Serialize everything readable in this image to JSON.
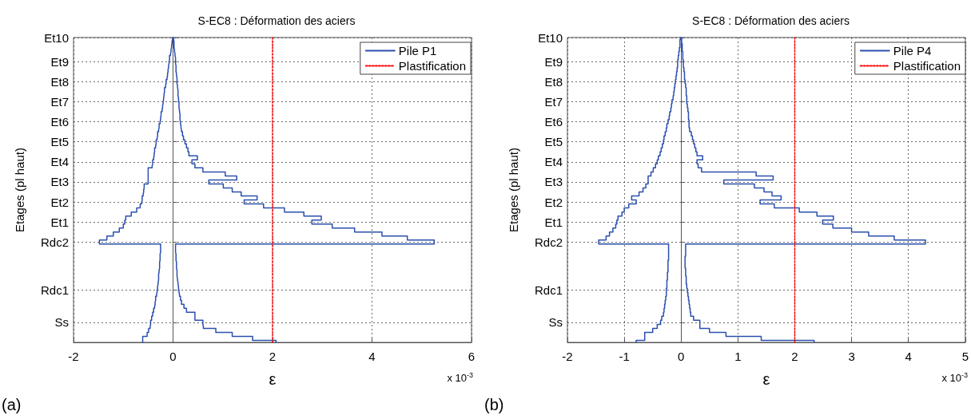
{
  "chart_data": [
    {
      "type": "step",
      "orientation": "horizontal",
      "title": "S-EC8 : Déformation des aciers",
      "xlabel": "ε",
      "ylabel": "Etages (pl haut)",
      "annotations": [
        "x 10$^{-3}$",
        "(a)"
      ],
      "xlim": [
        -2,
        6
      ],
      "xticks": [
        -2,
        0,
        2,
        4,
        6
      ],
      "categories": [
        "Et10",
        null,
        null,
        null,
        null,
        null,
        "Et9",
        null,
        null,
        null,
        null,
        "Et8",
        null,
        null,
        null,
        null,
        "Et7",
        null,
        null,
        null,
        null,
        "Et6",
        null,
        null,
        null,
        null,
        "Et5",
        null,
        null,
        null,
        null,
        "Et4",
        null,
        null,
        null,
        null,
        "Et3",
        null,
        null,
        null,
        null,
        "Et2",
        null,
        null,
        null,
        null,
        "Et1",
        null,
        null,
        null,
        null,
        "Rdc2",
        null,
        null,
        null,
        null,
        null,
        null,
        null,
        null,
        null,
        null,
        null,
        "Rdc1",
        null,
        null,
        null,
        null,
        null,
        null,
        null,
        "Ss",
        null,
        null,
        null,
        null,
        null
      ],
      "grid": true,
      "legend": "top right",
      "marker": "none",
      "series": [
        {
          "name": "Plastification",
          "color": "#ff0000",
          "line_style": "dotted",
          "values": [
            2,
            2,
            2,
            2,
            2,
            2,
            2,
            2,
            2,
            2,
            2,
            2,
            2,
            2,
            2,
            2,
            2,
            2,
            2,
            2,
            2,
            2,
            2,
            2,
            2,
            2,
            2,
            2,
            2,
            2,
            2,
            2,
            2,
            2,
            2,
            2,
            2,
            2,
            2,
            2,
            2,
            2,
            2,
            2,
            2,
            2,
            2,
            2,
            2,
            2,
            2,
            2,
            2,
            2,
            2,
            2,
            2,
            2,
            2,
            2,
            2,
            2,
            2,
            2,
            2,
            2,
            2,
            2,
            2,
            2,
            2,
            2,
            2,
            2,
            2,
            2,
            2
          ]
        },
        {
          "name": "Pile P1",
          "color": "#2b4fae",
          "values": [
            -0.01,
            -0.02,
            -0.03,
            -0.04,
            -0.05,
            -0.07,
            -0.08,
            -0.09,
            -0.1,
            -0.11,
            -0.12,
            -0.14,
            -0.15,
            -0.17,
            -0.18,
            -0.19,
            -0.2,
            -0.21,
            -0.22,
            -0.24,
            -0.25,
            -0.26,
            -0.28,
            -0.29,
            -0.31,
            -0.32,
            -0.34,
            -0.35,
            -0.37,
            -0.38,
            -0.39,
            -0.41,
            -0.42,
            -0.5,
            -0.5,
            -0.5,
            -0.5,
            -0.58,
            -0.59,
            -0.6,
            -0.62,
            -0.63,
            -0.66,
            -0.73,
            -0.84,
            -0.95,
            -0.97,
            -1.0,
            -1.08,
            -1.2,
            -1.33,
            -1.48,
            -0.25,
            -0.25,
            -0.26,
            -0.26,
            -0.27,
            -0.27,
            -0.28,
            -0.29,
            -0.29,
            -0.3,
            -0.31,
            -0.32,
            -0.33,
            -0.35,
            -0.36,
            -0.37,
            -0.39,
            -0.41,
            -0.43,
            -0.45,
            -0.46,
            -0.49,
            -0.52,
            -0.61,
            -0.61
          ]
        },
        {
          "color": "#2b4fae",
          "values": [
            0.01,
            0.02,
            0.02,
            0.03,
            0.04,
            0.05,
            0.05,
            0.06,
            0.06,
            0.07,
            0.08,
            0.08,
            0.09,
            0.1,
            0.1,
            0.11,
            0.12,
            0.12,
            0.13,
            0.14,
            0.14,
            0.15,
            0.16,
            0.17,
            0.19,
            0.21,
            0.24,
            0.27,
            0.3,
            0.32,
            0.49,
            0.38,
            0.44,
            0.6,
            1.05,
            1.28,
            0.72,
            1.01,
            1.19,
            1.37,
            1.69,
            1.43,
            1.82,
            2.24,
            2.63,
            2.98,
            2.79,
            3.2,
            3.65,
            4.2,
            4.71,
            5.25,
            0.05,
            0.05,
            0.06,
            0.06,
            0.07,
            0.07,
            0.08,
            0.08,
            0.09,
            0.1,
            0.11,
            0.12,
            0.13,
            0.15,
            0.17,
            0.22,
            0.27,
            0.44,
            0.44,
            0.6,
            0.61,
            0.86,
            1.19,
            1.6,
            2.07
          ]
        }
      ]
    },
    {
      "type": "step",
      "orientation": "horizontal",
      "title": "S-EC8 : Déformation des aciers",
      "xlabel": "ε",
      "ylabel": "Etages (pl haut)",
      "annotations": [
        "x 10$^{-3}$",
        "(b)"
      ],
      "xlim": [
        -2,
        5
      ],
      "xticks": [
        -2,
        -1,
        0,
        1,
        2,
        3,
        4,
        5
      ],
      "categories": [
        "Et10",
        null,
        null,
        null,
        null,
        null,
        "Et9",
        null,
        null,
        null,
        null,
        "Et8",
        null,
        null,
        null,
        null,
        "Et7",
        null,
        null,
        null,
        null,
        "Et6",
        null,
        null,
        null,
        null,
        "Et5",
        null,
        null,
        null,
        null,
        "Et4",
        null,
        null,
        null,
        null,
        "Et3",
        null,
        null,
        null,
        null,
        "Et2",
        null,
        null,
        null,
        null,
        "Et1",
        null,
        null,
        null,
        null,
        "Rdc2",
        null,
        null,
        null,
        null,
        null,
        null,
        null,
        null,
        null,
        null,
        null,
        "Rdc1",
        null,
        null,
        null,
        null,
        null,
        null,
        null,
        "Ss",
        null,
        null,
        null,
        null,
        null
      ],
      "grid": true,
      "legend": "top right",
      "marker": "none",
      "series": [
        {
          "name": "Plastification",
          "color": "#ff0000",
          "line_style": "dotted",
          "values": [
            2,
            2,
            2,
            2,
            2,
            2,
            2,
            2,
            2,
            2,
            2,
            2,
            2,
            2,
            2,
            2,
            2,
            2,
            2,
            2,
            2,
            2,
            2,
            2,
            2,
            2,
            2,
            2,
            2,
            2,
            2,
            2,
            2,
            2,
            2,
            2,
            2,
            2,
            2,
            2,
            2,
            2,
            2,
            2,
            2,
            2,
            2,
            2,
            2,
            2,
            2,
            2,
            2,
            2,
            2,
            2,
            2,
            2,
            2,
            2,
            2,
            2,
            2,
            2,
            2,
            2,
            2,
            2,
            2,
            2,
            2,
            2,
            2,
            2,
            2,
            2,
            2
          ]
        },
        {
          "name": "Pile P4",
          "color": "#2b4fae",
          "values": [
            -0.01,
            -0.02,
            -0.02,
            -0.03,
            -0.04,
            -0.05,
            -0.06,
            -0.06,
            -0.07,
            -0.08,
            -0.09,
            -0.1,
            -0.11,
            -0.12,
            -0.13,
            -0.14,
            -0.16,
            -0.17,
            -0.18,
            -0.2,
            -0.21,
            -0.23,
            -0.25,
            -0.26,
            -0.28,
            -0.3,
            -0.31,
            -0.33,
            -0.35,
            -0.37,
            -0.4,
            -0.42,
            -0.45,
            -0.49,
            -0.53,
            -0.58,
            -0.58,
            -0.62,
            -0.67,
            -0.74,
            -0.87,
            -0.79,
            -0.92,
            -1.0,
            -1.04,
            -1.11,
            -1.13,
            -1.15,
            -1.2,
            -1.26,
            -1.32,
            -1.45,
            -0.22,
            -0.22,
            -0.22,
            -0.22,
            -0.23,
            -0.23,
            -0.23,
            -0.24,
            -0.24,
            -0.25,
            -0.25,
            -0.26,
            -0.26,
            -0.27,
            -0.28,
            -0.29,
            -0.3,
            -0.31,
            -0.34,
            -0.36,
            -0.42,
            -0.5,
            -0.64,
            -0.64,
            -0.79
          ]
        },
        {
          "color": "#2b4fae",
          "values": [
            0.01,
            0.01,
            0.02,
            0.02,
            0.03,
            0.03,
            0.04,
            0.04,
            0.05,
            0.06,
            0.06,
            0.07,
            0.08,
            0.09,
            0.09,
            0.1,
            0.1,
            0.11,
            0.12,
            0.13,
            0.13,
            0.14,
            0.14,
            0.15,
            0.18,
            0.2,
            0.22,
            0.24,
            0.26,
            0.28,
            0.38,
            0.28,
            0.3,
            0.36,
            1.32,
            1.62,
            0.75,
            1.29,
            1.46,
            1.6,
            1.76,
            1.39,
            1.64,
            2.08,
            2.39,
            2.68,
            2.49,
            2.67,
            3.0,
            3.3,
            3.75,
            4.3,
            0.08,
            0.08,
            0.08,
            0.07,
            0.07,
            0.07,
            0.08,
            0.08,
            0.09,
            0.09,
            0.1,
            0.11,
            0.12,
            0.13,
            0.14,
            0.15,
            0.16,
            0.17,
            0.22,
            0.33,
            0.33,
            0.5,
            0.79,
            1.41,
            2.34
          ]
        }
      ]
    }
  ]
}
